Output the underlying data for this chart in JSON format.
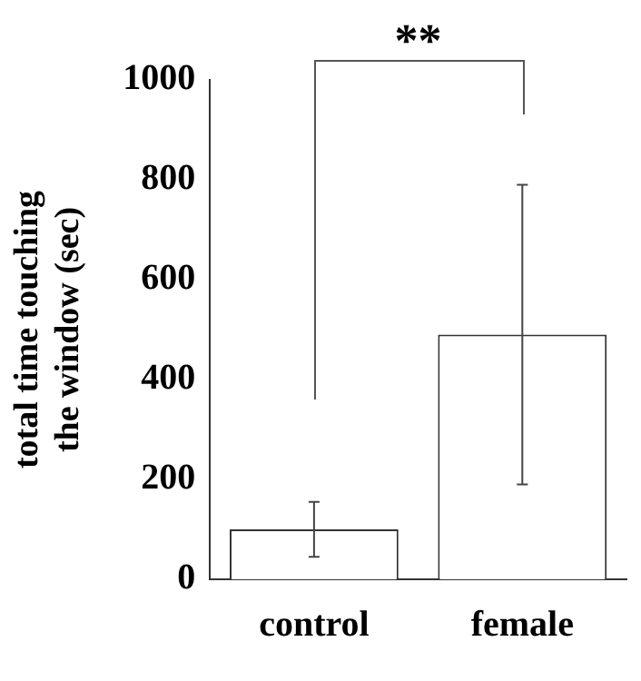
{
  "chart_data": {
    "type": "bar",
    "ylabel": "total time touching\nthe window (sec)",
    "categories": [
      "control",
      "female"
    ],
    "values": [
      100,
      490
    ],
    "errors": [
      55,
      300
    ],
    "color": "#ffffff",
    "ylim": [
      0,
      1000
    ],
    "yticks": [
      0,
      200,
      400,
      600,
      800,
      1000
    ],
    "grid": false,
    "legend": false,
    "annotations": [
      "**"
    ]
  }
}
